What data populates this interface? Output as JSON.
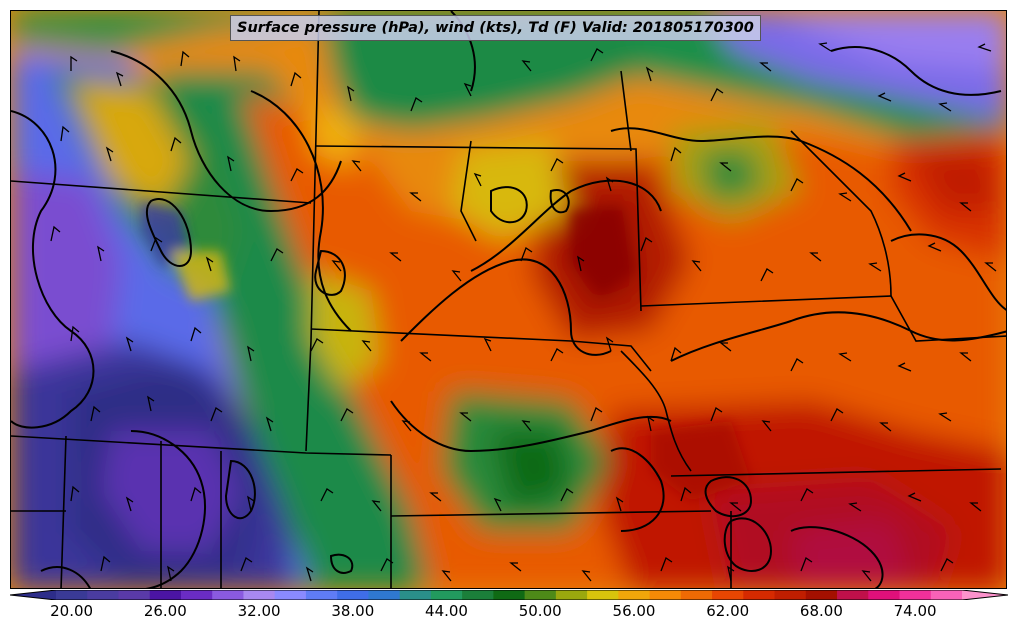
{
  "title": "Surface pressure (hPa), wind (kts), Td (F) Valid: 201805170300",
  "colorbar": {
    "min": 20,
    "max": 76,
    "step": 2,
    "tick_labels": [
      "20.00",
      "26.00",
      "32.00",
      "38.00",
      "44.00",
      "50.00",
      "56.00",
      "62.00",
      "68.00",
      "74.00"
    ],
    "colors": [
      "#2d2d8a",
      "#3a3a96",
      "#4a3ca0",
      "#5a3aa8",
      "#4b14a4",
      "#6a2cc4",
      "#8a5ae0",
      "#a888f0",
      "#8a8aff",
      "#5f7cf5",
      "#3f6de8",
      "#2f78d0",
      "#2a8f8a",
      "#229a5e",
      "#1b7f3a",
      "#0f6a14",
      "#4d8a18",
      "#9aa80e",
      "#d8c40c",
      "#f0a60a",
      "#f58a06",
      "#ef6a04",
      "#e84602",
      "#d62a00",
      "#c01e00",
      "#a41000",
      "#c0104a",
      "#e0107a",
      "#f0309a",
      "#f862b8",
      "#fc92cc"
    ]
  }
}
